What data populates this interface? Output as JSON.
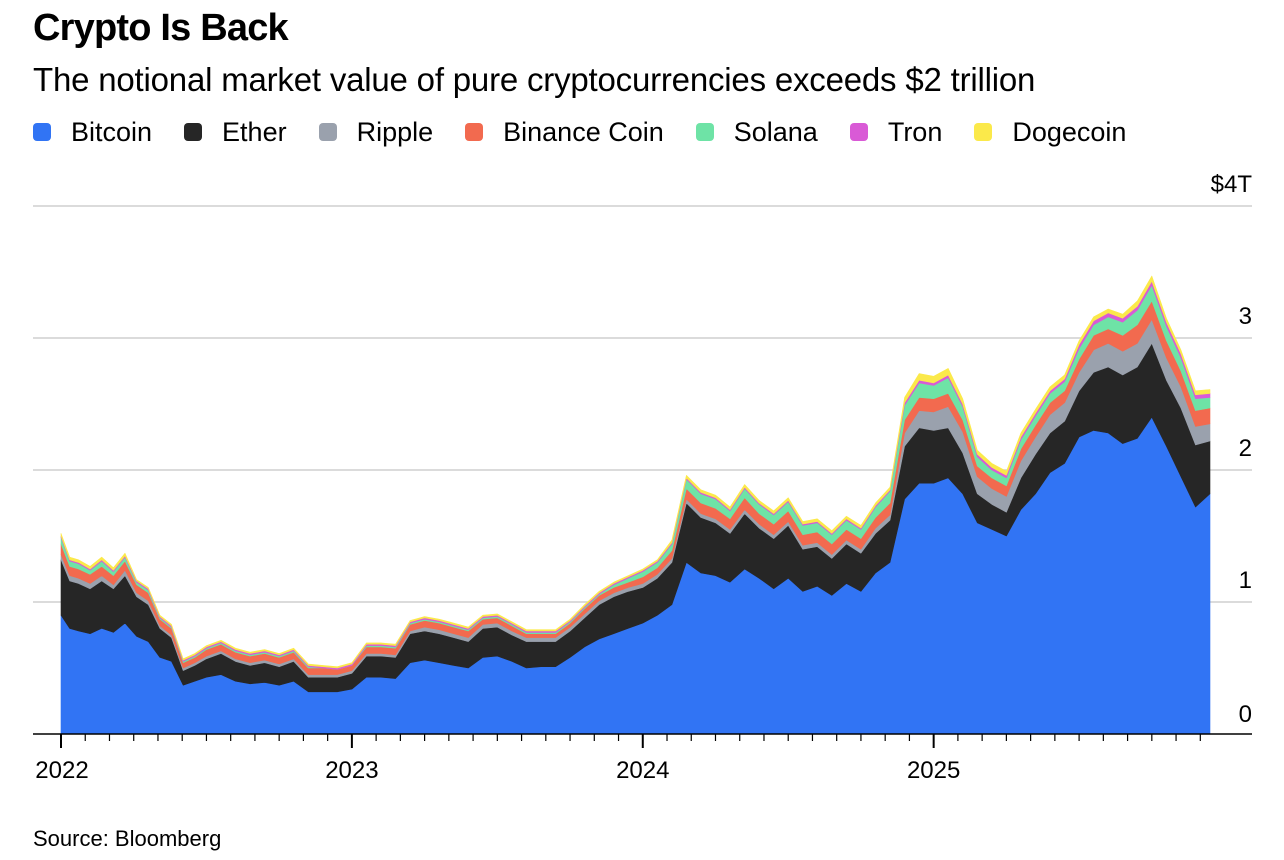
{
  "header": {
    "title": "Crypto Is Back",
    "subtitle": "The notional market value of pure cryptocurrencies exceeds $2 trillion"
  },
  "footer": {
    "source": "Source: Bloomberg"
  },
  "chart_data": {
    "type": "area",
    "stacked": true,
    "title": "Crypto Is Back",
    "subtitle": "The notional market value of pure cryptocurrencies exceeds $2 trillion",
    "xlabel": "",
    "ylabel": "",
    "y_unit": "trillions USD",
    "ylim": [
      0,
      4
    ],
    "y_ticks": [
      0,
      1,
      2,
      3,
      4
    ],
    "y_tick_labels": [
      "0",
      "1",
      "2",
      "3",
      "$4T"
    ],
    "x_tick_labels": [
      "2022",
      "2023",
      "2024",
      "2025"
    ],
    "x_tick_years": [
      2022,
      2023,
      2024,
      2025
    ],
    "x_range": [
      2022.0,
      2025.95
    ],
    "grid": true,
    "legend_position": "top",
    "x": [
      2022.0,
      2022.03,
      2022.06,
      2022.1,
      2022.14,
      2022.18,
      2022.22,
      2022.26,
      2022.3,
      2022.34,
      2022.38,
      2022.42,
      2022.46,
      2022.5,
      2022.55,
      2022.6,
      2022.65,
      2022.7,
      2022.75,
      2022.8,
      2022.85,
      2022.9,
      2022.95,
      2023.0,
      2023.05,
      2023.1,
      2023.15,
      2023.2,
      2023.25,
      2023.3,
      2023.35,
      2023.4,
      2023.45,
      2023.5,
      2023.55,
      2023.6,
      2023.65,
      2023.7,
      2023.75,
      2023.8,
      2023.85,
      2023.9,
      2023.95,
      2024.0,
      2024.05,
      2024.1,
      2024.15,
      2024.2,
      2024.25,
      2024.3,
      2024.35,
      2024.4,
      2024.45,
      2024.5,
      2024.55,
      2024.6,
      2024.65,
      2024.7,
      2024.75,
      2024.8,
      2024.85,
      2024.9,
      2024.95,
      2025.0,
      2025.05,
      2025.1,
      2025.15,
      2025.2,
      2025.25,
      2025.3,
      2025.35,
      2025.4,
      2025.45,
      2025.5,
      2025.55,
      2025.6,
      2025.65,
      2025.7,
      2025.75,
      2025.8,
      2025.85,
      2025.9,
      2025.95
    ],
    "series": [
      {
        "name": "Bitcoin",
        "color": "#3174f4",
        "values": [
          0.9,
          0.8,
          0.78,
          0.76,
          0.8,
          0.77,
          0.84,
          0.74,
          0.7,
          0.58,
          0.55,
          0.37,
          0.4,
          0.43,
          0.45,
          0.4,
          0.38,
          0.39,
          0.37,
          0.4,
          0.32,
          0.32,
          0.32,
          0.34,
          0.43,
          0.43,
          0.42,
          0.54,
          0.56,
          0.54,
          0.52,
          0.5,
          0.58,
          0.59,
          0.55,
          0.5,
          0.51,
          0.51,
          0.58,
          0.66,
          0.72,
          0.76,
          0.8,
          0.84,
          0.9,
          0.98,
          1.3,
          1.22,
          1.2,
          1.15,
          1.25,
          1.18,
          1.1,
          1.18,
          1.08,
          1.12,
          1.05,
          1.14,
          1.08,
          1.22,
          1.3,
          1.78,
          1.9,
          1.9,
          1.94,
          1.82,
          1.6,
          1.55,
          1.5,
          1.7,
          1.82,
          1.98,
          2.05,
          2.25,
          2.3,
          2.28,
          2.2,
          2.24,
          2.4,
          2.18,
          1.95,
          1.72,
          1.82
        ]
      },
      {
        "name": "Ether",
        "color": "#262626",
        "values": [
          0.42,
          0.36,
          0.36,
          0.34,
          0.36,
          0.33,
          0.36,
          0.3,
          0.28,
          0.22,
          0.18,
          0.11,
          0.12,
          0.14,
          0.16,
          0.15,
          0.14,
          0.15,
          0.14,
          0.15,
          0.11,
          0.11,
          0.11,
          0.12,
          0.16,
          0.16,
          0.16,
          0.22,
          0.22,
          0.22,
          0.21,
          0.2,
          0.22,
          0.22,
          0.2,
          0.2,
          0.19,
          0.19,
          0.2,
          0.22,
          0.26,
          0.28,
          0.28,
          0.27,
          0.28,
          0.32,
          0.45,
          0.42,
          0.4,
          0.37,
          0.42,
          0.38,
          0.38,
          0.4,
          0.32,
          0.3,
          0.28,
          0.3,
          0.29,
          0.3,
          0.32,
          0.4,
          0.42,
          0.4,
          0.38,
          0.31,
          0.22,
          0.19,
          0.18,
          0.24,
          0.3,
          0.3,
          0.32,
          0.35,
          0.44,
          0.5,
          0.52,
          0.54,
          0.56,
          0.5,
          0.52,
          0.47,
          0.4
        ]
      },
      {
        "name": "Ripple",
        "color": "#9aa1ad",
        "values": [
          0.04,
          0.04,
          0.04,
          0.04,
          0.04,
          0.03,
          0.04,
          0.03,
          0.03,
          0.02,
          0.02,
          0.02,
          0.02,
          0.02,
          0.02,
          0.02,
          0.02,
          0.02,
          0.02,
          0.02,
          0.02,
          0.02,
          0.02,
          0.02,
          0.02,
          0.02,
          0.02,
          0.02,
          0.03,
          0.03,
          0.03,
          0.03,
          0.03,
          0.03,
          0.03,
          0.03,
          0.03,
          0.03,
          0.03,
          0.03,
          0.03,
          0.03,
          0.03,
          0.03,
          0.03,
          0.03,
          0.03,
          0.03,
          0.03,
          0.03,
          0.03,
          0.03,
          0.03,
          0.03,
          0.03,
          0.03,
          0.03,
          0.03,
          0.03,
          0.04,
          0.04,
          0.1,
          0.13,
          0.14,
          0.16,
          0.16,
          0.13,
          0.12,
          0.12,
          0.13,
          0.13,
          0.14,
          0.14,
          0.14,
          0.17,
          0.18,
          0.18,
          0.18,
          0.18,
          0.17,
          0.16,
          0.14,
          0.13
        ]
      },
      {
        "name": "Binance Coin",
        "color": "#f26a4f",
        "values": [
          0.08,
          0.07,
          0.07,
          0.07,
          0.07,
          0.07,
          0.07,
          0.06,
          0.06,
          0.05,
          0.05,
          0.04,
          0.04,
          0.05,
          0.05,
          0.05,
          0.05,
          0.05,
          0.05,
          0.05,
          0.05,
          0.05,
          0.04,
          0.04,
          0.05,
          0.05,
          0.05,
          0.05,
          0.05,
          0.05,
          0.05,
          0.05,
          0.04,
          0.04,
          0.04,
          0.03,
          0.03,
          0.03,
          0.03,
          0.04,
          0.04,
          0.04,
          0.04,
          0.05,
          0.05,
          0.06,
          0.08,
          0.08,
          0.08,
          0.08,
          0.09,
          0.08,
          0.08,
          0.08,
          0.08,
          0.08,
          0.08,
          0.08,
          0.08,
          0.08,
          0.09,
          0.1,
          0.1,
          0.1,
          0.1,
          0.09,
          0.08,
          0.08,
          0.08,
          0.09,
          0.09,
          0.09,
          0.09,
          0.1,
          0.11,
          0.11,
          0.12,
          0.14,
          0.14,
          0.13,
          0.12,
          0.12,
          0.12
        ]
      },
      {
        "name": "Solana",
        "color": "#6ee3a6",
        "values": [
          0.05,
          0.04,
          0.04,
          0.03,
          0.04,
          0.03,
          0.03,
          0.02,
          0.02,
          0.01,
          0.01,
          0.01,
          0.01,
          0.01,
          0.01,
          0.01,
          0.01,
          0.01,
          0.01,
          0.01,
          0.01,
          0.0,
          0.0,
          0.0,
          0.01,
          0.01,
          0.01,
          0.01,
          0.01,
          0.01,
          0.01,
          0.01,
          0.01,
          0.01,
          0.01,
          0.01,
          0.01,
          0.01,
          0.01,
          0.01,
          0.01,
          0.02,
          0.03,
          0.04,
          0.04,
          0.05,
          0.07,
          0.07,
          0.07,
          0.06,
          0.07,
          0.07,
          0.07,
          0.07,
          0.07,
          0.07,
          0.07,
          0.07,
          0.07,
          0.08,
          0.09,
          0.11,
          0.11,
          0.1,
          0.12,
          0.1,
          0.07,
          0.06,
          0.06,
          0.07,
          0.07,
          0.07,
          0.07,
          0.08,
          0.08,
          0.09,
          0.1,
          0.11,
          0.12,
          0.11,
          0.1,
          0.09,
          0.08
        ]
      },
      {
        "name": "Tron",
        "color": "#d95ad6",
        "values": [
          0.01,
          0.01,
          0.01,
          0.01,
          0.01,
          0.01,
          0.01,
          0.01,
          0.01,
          0.01,
          0.01,
          0.01,
          0.01,
          0.01,
          0.01,
          0.01,
          0.01,
          0.01,
          0.01,
          0.01,
          0.01,
          0.01,
          0.01,
          0.01,
          0.01,
          0.01,
          0.01,
          0.01,
          0.01,
          0.01,
          0.01,
          0.01,
          0.01,
          0.01,
          0.01,
          0.01,
          0.01,
          0.01,
          0.01,
          0.01,
          0.01,
          0.01,
          0.01,
          0.01,
          0.01,
          0.01,
          0.01,
          0.01,
          0.01,
          0.01,
          0.01,
          0.01,
          0.01,
          0.01,
          0.01,
          0.01,
          0.01,
          0.01,
          0.01,
          0.01,
          0.01,
          0.02,
          0.02,
          0.02,
          0.02,
          0.02,
          0.02,
          0.02,
          0.02,
          0.02,
          0.02,
          0.02,
          0.02,
          0.03,
          0.03,
          0.03,
          0.03,
          0.03,
          0.03,
          0.03,
          0.03,
          0.03,
          0.03
        ]
      },
      {
        "name": "Dogecoin",
        "color": "#fbe94a",
        "values": [
          0.02,
          0.02,
          0.02,
          0.02,
          0.02,
          0.02,
          0.02,
          0.01,
          0.01,
          0.01,
          0.01,
          0.01,
          0.01,
          0.01,
          0.01,
          0.01,
          0.01,
          0.01,
          0.01,
          0.01,
          0.01,
          0.01,
          0.01,
          0.01,
          0.01,
          0.01,
          0.01,
          0.01,
          0.01,
          0.01,
          0.01,
          0.01,
          0.01,
          0.01,
          0.01,
          0.01,
          0.01,
          0.01,
          0.01,
          0.01,
          0.01,
          0.01,
          0.01,
          0.01,
          0.01,
          0.02,
          0.02,
          0.02,
          0.02,
          0.02,
          0.02,
          0.02,
          0.02,
          0.02,
          0.02,
          0.02,
          0.02,
          0.02,
          0.02,
          0.02,
          0.02,
          0.04,
          0.05,
          0.05,
          0.05,
          0.04,
          0.03,
          0.03,
          0.03,
          0.03,
          0.03,
          0.03,
          0.03,
          0.03,
          0.03,
          0.03,
          0.03,
          0.04,
          0.04,
          0.03,
          0.03,
          0.03,
          0.03
        ]
      }
    ]
  }
}
